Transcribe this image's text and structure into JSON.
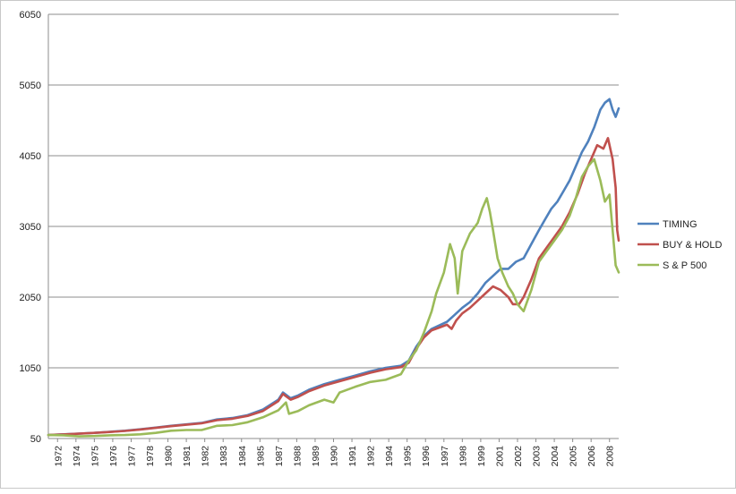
{
  "chart_data": {
    "type": "line",
    "title": "",
    "xlabel": "",
    "ylabel": "",
    "ylim": [
      50,
      6050
    ],
    "y_ticks": [
      "50",
      "1050",
      "2050",
      "3050",
      "4050",
      "5050",
      "6050"
    ],
    "x_tick_labels": [
      "1972",
      "1974",
      "1975",
      "1976",
      "1977",
      "1978",
      "1980",
      "1981",
      "1982",
      "1983",
      "1984",
      "1985",
      "1987",
      "1988",
      "1989",
      "1990",
      "1991",
      "1992",
      "1994",
      "1995",
      "1996",
      "1997",
      "1998",
      "1999",
      "2001",
      "2002",
      "2003",
      "2004",
      "2005",
      "2006",
      "2008"
    ],
    "grid": "horizontal",
    "legend_position": "right",
    "series": [
      {
        "name": "TIMING",
        "color": "#4f81bd",
        "points": [
          [
            1972.0,
            100
          ],
          [
            1973.0,
            110
          ],
          [
            1974.0,
            120
          ],
          [
            1975.0,
            130
          ],
          [
            1976.0,
            145
          ],
          [
            1977.0,
            160
          ],
          [
            1978.0,
            180
          ],
          [
            1979.0,
            205
          ],
          [
            1980.0,
            230
          ],
          [
            1981.0,
            250
          ],
          [
            1982.0,
            270
          ],
          [
            1983.0,
            320
          ],
          [
            1984.0,
            340
          ],
          [
            1985.0,
            380
          ],
          [
            1986.0,
            460
          ],
          [
            1987.0,
            600
          ],
          [
            1987.3,
            700
          ],
          [
            1987.8,
            620
          ],
          [
            1988.3,
            660
          ],
          [
            1989.0,
            740
          ],
          [
            1990.0,
            820
          ],
          [
            1991.0,
            880
          ],
          [
            1992.0,
            940
          ],
          [
            1993.0,
            1000
          ],
          [
            1994.0,
            1050
          ],
          [
            1995.0,
            1080
          ],
          [
            1995.5,
            1150
          ],
          [
            1996.0,
            1350
          ],
          [
            1996.5,
            1500
          ],
          [
            1997.0,
            1600
          ],
          [
            1997.5,
            1650
          ],
          [
            1998.0,
            1700
          ],
          [
            1998.5,
            1800
          ],
          [
            1999.0,
            1900
          ],
          [
            1999.5,
            1980
          ],
          [
            2000.0,
            2100
          ],
          [
            2000.5,
            2250
          ],
          [
            2001.0,
            2350
          ],
          [
            2001.5,
            2450
          ],
          [
            2002.0,
            2450
          ],
          [
            2002.5,
            2550
          ],
          [
            2003.0,
            2600
          ],
          [
            2003.5,
            2800
          ],
          [
            2004.0,
            3000
          ],
          [
            2004.4,
            3150
          ],
          [
            2004.8,
            3300
          ],
          [
            2005.2,
            3400
          ],
          [
            2005.6,
            3550
          ],
          [
            2006.0,
            3700
          ],
          [
            2006.4,
            3900
          ],
          [
            2006.8,
            4100
          ],
          [
            2007.2,
            4250
          ],
          [
            2007.6,
            4450
          ],
          [
            2008.0,
            4700
          ],
          [
            2008.3,
            4800
          ],
          [
            2008.6,
            4850
          ],
          [
            2008.8,
            4700
          ],
          [
            2009.0,
            4600
          ],
          [
            2009.2,
            4720
          ]
        ]
      },
      {
        "name": "BUY & HOLD",
        "color": "#c0504d",
        "points": [
          [
            1972.0,
            100
          ],
          [
            1973.0,
            108
          ],
          [
            1974.0,
            118
          ],
          [
            1975.0,
            130
          ],
          [
            1976.0,
            143
          ],
          [
            1977.0,
            158
          ],
          [
            1978.0,
            178
          ],
          [
            1979.0,
            200
          ],
          [
            1980.0,
            225
          ],
          [
            1981.0,
            245
          ],
          [
            1982.0,
            265
          ],
          [
            1983.0,
            310
          ],
          [
            1984.0,
            330
          ],
          [
            1985.0,
            370
          ],
          [
            1986.0,
            440
          ],
          [
            1987.0,
            580
          ],
          [
            1987.3,
            680
          ],
          [
            1987.8,
            600
          ],
          [
            1988.3,
            640
          ],
          [
            1989.0,
            720
          ],
          [
            1990.0,
            800
          ],
          [
            1991.0,
            860
          ],
          [
            1992.0,
            920
          ],
          [
            1993.0,
            980
          ],
          [
            1994.0,
            1030
          ],
          [
            1995.0,
            1060
          ],
          [
            1995.5,
            1120
          ],
          [
            1996.0,
            1320
          ],
          [
            1996.5,
            1480
          ],
          [
            1997.0,
            1580
          ],
          [
            1997.5,
            1620
          ],
          [
            1998.0,
            1660
          ],
          [
            1998.3,
            1600
          ],
          [
            1998.6,
            1720
          ],
          [
            1999.0,
            1820
          ],
          [
            1999.5,
            1900
          ],
          [
            2000.0,
            2000
          ],
          [
            2000.5,
            2100
          ],
          [
            2001.0,
            2200
          ],
          [
            2001.5,
            2150
          ],
          [
            2002.0,
            2050
          ],
          [
            2002.3,
            1950
          ],
          [
            2002.7,
            1950
          ],
          [
            2003.0,
            2050
          ],
          [
            2003.5,
            2300
          ],
          [
            2004.0,
            2600
          ],
          [
            2004.5,
            2750
          ],
          [
            2005.0,
            2900
          ],
          [
            2005.5,
            3050
          ],
          [
            2006.0,
            3250
          ],
          [
            2006.5,
            3500
          ],
          [
            2007.0,
            3800
          ],
          [
            2007.4,
            4000
          ],
          [
            2007.8,
            4200
          ],
          [
            2008.2,
            4150
          ],
          [
            2008.5,
            4300
          ],
          [
            2008.8,
            4000
          ],
          [
            2009.0,
            3600
          ],
          [
            2009.1,
            3000
          ],
          [
            2009.2,
            2850
          ]
        ]
      },
      {
        "name": "S & P 500",
        "color": "#9bbb59",
        "points": [
          [
            1972.0,
            100
          ],
          [
            1973.0,
            95
          ],
          [
            1974.0,
            80
          ],
          [
            1975.0,
            85
          ],
          [
            1976.0,
            95
          ],
          [
            1977.0,
            100
          ],
          [
            1978.0,
            110
          ],
          [
            1979.0,
            130
          ],
          [
            1980.0,
            160
          ],
          [
            1981.0,
            170
          ],
          [
            1982.0,
            170
          ],
          [
            1983.0,
            230
          ],
          [
            1984.0,
            240
          ],
          [
            1985.0,
            280
          ],
          [
            1986.0,
            350
          ],
          [
            1987.0,
            450
          ],
          [
            1987.5,
            560
          ],
          [
            1987.7,
            400
          ],
          [
            1988.3,
            440
          ],
          [
            1989.0,
            520
          ],
          [
            1990.0,
            600
          ],
          [
            1990.6,
            560
          ],
          [
            1991.0,
            700
          ],
          [
            1992.0,
            780
          ],
          [
            1993.0,
            850
          ],
          [
            1994.0,
            880
          ],
          [
            1995.0,
            960
          ],
          [
            1995.5,
            1150
          ],
          [
            1996.0,
            1300
          ],
          [
            1996.5,
            1550
          ],
          [
            1997.0,
            1850
          ],
          [
            1997.3,
            2100
          ],
          [
            1997.8,
            2400
          ],
          [
            1998.2,
            2800
          ],
          [
            1998.5,
            2600
          ],
          [
            1998.7,
            2100
          ],
          [
            1999.0,
            2700
          ],
          [
            1999.5,
            2950
          ],
          [
            2000.0,
            3100
          ],
          [
            2000.3,
            3300
          ],
          [
            2000.6,
            3450
          ],
          [
            2000.8,
            3250
          ],
          [
            2001.0,
            3000
          ],
          [
            2001.3,
            2600
          ],
          [
            2001.6,
            2400
          ],
          [
            2002.0,
            2200
          ],
          [
            2002.3,
            2100
          ],
          [
            2002.6,
            1950
          ],
          [
            2003.0,
            1850
          ],
          [
            2003.5,
            2150
          ],
          [
            2004.0,
            2550
          ],
          [
            2004.5,
            2700
          ],
          [
            2005.0,
            2850
          ],
          [
            2005.5,
            3000
          ],
          [
            2006.0,
            3200
          ],
          [
            2006.4,
            3450
          ],
          [
            2006.8,
            3750
          ],
          [
            2007.2,
            3900
          ],
          [
            2007.6,
            4000
          ],
          [
            2008.0,
            3700
          ],
          [
            2008.3,
            3400
          ],
          [
            2008.6,
            3500
          ],
          [
            2008.8,
            3000
          ],
          [
            2009.0,
            2500
          ],
          [
            2009.2,
            2400
          ]
        ]
      }
    ]
  }
}
